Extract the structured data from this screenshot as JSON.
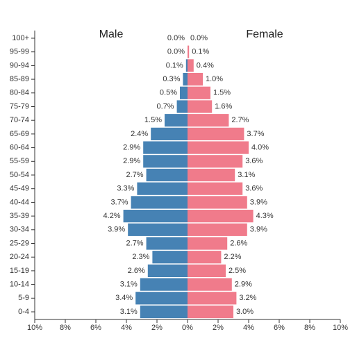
{
  "chart_data": {
    "type": "population-pyramid",
    "categories": [
      "100+",
      "95-99",
      "90-94",
      "85-89",
      "80-84",
      "75-79",
      "70-74",
      "65-69",
      "60-64",
      "55-59",
      "50-54",
      "45-49",
      "40-44",
      "35-39",
      "30-34",
      "25-29",
      "20-24",
      "15-19",
      "10-14",
      "5-9",
      "0-4"
    ],
    "series": [
      {
        "name": "Male",
        "color": "#4682b4",
        "side": "left",
        "values": [
          0.0,
          0.0,
          0.1,
          0.3,
          0.5,
          0.7,
          1.5,
          2.4,
          2.9,
          2.9,
          2.7,
          3.3,
          3.7,
          4.2,
          3.9,
          2.7,
          2.3,
          2.6,
          3.1,
          3.4,
          3.1
        ],
        "value_labels": [
          "0.0%",
          "0.0%",
          "0.1%",
          "0.3%",
          "0.5%",
          "0.7%",
          "1.5%",
          "2.4%",
          "2.9%",
          "2.9%",
          "2.7%",
          "3.3%",
          "3.7%",
          "4.2%",
          "3.9%",
          "2.7%",
          "2.3%",
          "2.6%",
          "3.1%",
          "3.4%",
          "3.1%"
        ]
      },
      {
        "name": "Female",
        "color": "#f07b8b",
        "side": "right",
        "values": [
          0.0,
          0.1,
          0.4,
          1.0,
          1.5,
          1.6,
          2.7,
          3.7,
          4.0,
          3.6,
          3.1,
          3.6,
          3.9,
          4.3,
          3.9,
          2.6,
          2.2,
          2.5,
          2.9,
          3.2,
          3.0
        ],
        "value_labels": [
          "0.0%",
          "0.1%",
          "0.4%",
          "1.0%",
          "1.5%",
          "1.6%",
          "2.7%",
          "3.7%",
          "4.0%",
          "3.6%",
          "3.1%",
          "3.6%",
          "3.9%",
          "4.3%",
          "3.9%",
          "2.6%",
          "2.2%",
          "2.5%",
          "2.9%",
          "3.2%",
          "3.0%"
        ]
      }
    ],
    "xlim": [
      -10,
      10
    ],
    "xticks": [
      {
        "value": -10,
        "label": "10%"
      },
      {
        "value": -8,
        "label": "8%"
      },
      {
        "value": -6,
        "label": "6%"
      },
      {
        "value": -4,
        "label": "4%"
      },
      {
        "value": -2,
        "label": "2%"
      },
      {
        "value": 0,
        "label": "0%"
      },
      {
        "value": 2,
        "label": "2%"
      },
      {
        "value": 4,
        "label": "4%"
      },
      {
        "value": 6,
        "label": "6%"
      },
      {
        "value": 8,
        "label": "8%"
      },
      {
        "value": 10,
        "label": "10%"
      }
    ]
  }
}
